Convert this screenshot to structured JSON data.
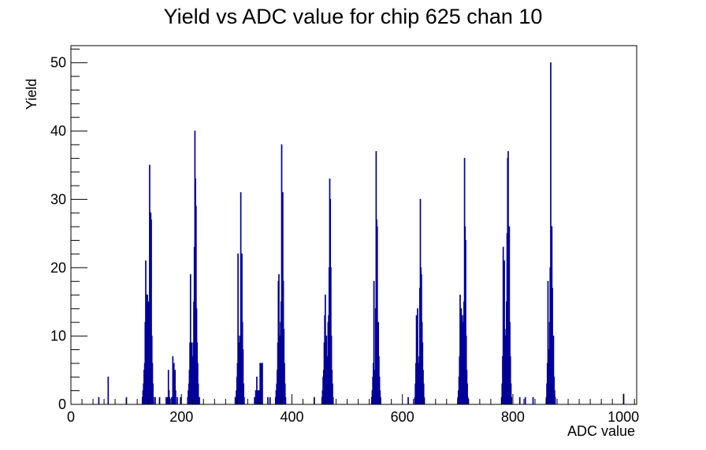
{
  "chart_data": {
    "type": "histogram",
    "title": "Yield vs ADC value for chip 625 chan 10",
    "xlabel": "ADC value",
    "ylabel": "Yield",
    "xlim": [
      0,
      1024
    ],
    "ylim": [
      0,
      52.5
    ],
    "x_ticks": [
      0,
      200,
      400,
      600,
      800,
      1000
    ],
    "y_ticks": [
      0,
      10,
      20,
      30,
      40,
      50
    ],
    "bin_width": 1,
    "color": "#000099",
    "grid": false,
    "legend": "none",
    "bins": [
      {
        "x": 50,
        "y": 1
      },
      {
        "x": 67,
        "y": 4
      },
      {
        "x": 100,
        "y": 1
      },
      {
        "x": 129,
        "y": 1
      },
      {
        "x": 130,
        "y": 2
      },
      {
        "x": 131,
        "y": 3
      },
      {
        "x": 132,
        "y": 5
      },
      {
        "x": 133,
        "y": 6
      },
      {
        "x": 134,
        "y": 12
      },
      {
        "x": 135,
        "y": 21
      },
      {
        "x": 136,
        "y": 16
      },
      {
        "x": 137,
        "y": 5
      },
      {
        "x": 138,
        "y": 16
      },
      {
        "x": 139,
        "y": 4
      },
      {
        "x": 140,
        "y": 15
      },
      {
        "x": 141,
        "y": 6
      },
      {
        "x": 142,
        "y": 35
      },
      {
        "x": 143,
        "y": 8
      },
      {
        "x": 144,
        "y": 28
      },
      {
        "x": 145,
        "y": 27
      },
      {
        "x": 146,
        "y": 10
      },
      {
        "x": 147,
        "y": 6
      },
      {
        "x": 148,
        "y": 3
      },
      {
        "x": 149,
        "y": 1
      },
      {
        "x": 152,
        "y": 1
      },
      {
        "x": 160,
        "y": 1
      },
      {
        "x": 172,
        "y": 1
      },
      {
        "x": 174,
        "y": 1
      },
      {
        "x": 176,
        "y": 5
      },
      {
        "x": 177,
        "y": 2
      },
      {
        "x": 178,
        "y": 1
      },
      {
        "x": 182,
        "y": 1
      },
      {
        "x": 184,
        "y": 7
      },
      {
        "x": 185,
        "y": 2
      },
      {
        "x": 186,
        "y": 6
      },
      {
        "x": 187,
        "y": 1
      },
      {
        "x": 188,
        "y": 5
      },
      {
        "x": 189,
        "y": 2
      },
      {
        "x": 192,
        "y": 1
      },
      {
        "x": 198,
        "y": 1
      },
      {
        "x": 211,
        "y": 1
      },
      {
        "x": 212,
        "y": 2
      },
      {
        "x": 213,
        "y": 3
      },
      {
        "x": 214,
        "y": 5
      },
      {
        "x": 215,
        "y": 9
      },
      {
        "x": 216,
        "y": 19
      },
      {
        "x": 217,
        "y": 6
      },
      {
        "x": 218,
        "y": 9
      },
      {
        "x": 219,
        "y": 6
      },
      {
        "x": 220,
        "y": 7
      },
      {
        "x": 221,
        "y": 9
      },
      {
        "x": 222,
        "y": 15
      },
      {
        "x": 223,
        "y": 23
      },
      {
        "x": 224,
        "y": 40
      },
      {
        "x": 225,
        "y": 33
      },
      {
        "x": 226,
        "y": 29
      },
      {
        "x": 227,
        "y": 14
      },
      {
        "x": 228,
        "y": 9
      },
      {
        "x": 229,
        "y": 6
      },
      {
        "x": 230,
        "y": 3
      },
      {
        "x": 231,
        "y": 1
      },
      {
        "x": 232,
        "y": 1
      },
      {
        "x": 297,
        "y": 1
      },
      {
        "x": 298,
        "y": 1
      },
      {
        "x": 299,
        "y": 2
      },
      {
        "x": 300,
        "y": 4
      },
      {
        "x": 301,
        "y": 6
      },
      {
        "x": 302,
        "y": 22
      },
      {
        "x": 303,
        "y": 10
      },
      {
        "x": 304,
        "y": 9
      },
      {
        "x": 305,
        "y": 4
      },
      {
        "x": 306,
        "y": 10
      },
      {
        "x": 307,
        "y": 31
      },
      {
        "x": 308,
        "y": 15
      },
      {
        "x": 309,
        "y": 22
      },
      {
        "x": 310,
        "y": 12
      },
      {
        "x": 311,
        "y": 8
      },
      {
        "x": 312,
        "y": 3
      },
      {
        "x": 313,
        "y": 1
      },
      {
        "x": 332,
        "y": 1
      },
      {
        "x": 334,
        "y": 2
      },
      {
        "x": 336,
        "y": 4
      },
      {
        "x": 338,
        "y": 2
      },
      {
        "x": 340,
        "y": 2
      },
      {
        "x": 342,
        "y": 6
      },
      {
        "x": 344,
        "y": 6
      },
      {
        "x": 346,
        "y": 6
      },
      {
        "x": 356,
        "y": 1
      },
      {
        "x": 360,
        "y": 1
      },
      {
        "x": 370,
        "y": 1
      },
      {
        "x": 371,
        "y": 2
      },
      {
        "x": 372,
        "y": 3
      },
      {
        "x": 373,
        "y": 5
      },
      {
        "x": 374,
        "y": 9
      },
      {
        "x": 375,
        "y": 18
      },
      {
        "x": 376,
        "y": 19
      },
      {
        "x": 377,
        "y": 10
      },
      {
        "x": 378,
        "y": 7
      },
      {
        "x": 379,
        "y": 12
      },
      {
        "x": 380,
        "y": 15
      },
      {
        "x": 381,
        "y": 38
      },
      {
        "x": 382,
        "y": 30
      },
      {
        "x": 383,
        "y": 31
      },
      {
        "x": 384,
        "y": 18
      },
      {
        "x": 385,
        "y": 11
      },
      {
        "x": 386,
        "y": 6
      },
      {
        "x": 387,
        "y": 3
      },
      {
        "x": 388,
        "y": 1
      },
      {
        "x": 440,
        "y": 1
      },
      {
        "x": 454,
        "y": 1
      },
      {
        "x": 455,
        "y": 2
      },
      {
        "x": 456,
        "y": 4
      },
      {
        "x": 457,
        "y": 5
      },
      {
        "x": 458,
        "y": 9
      },
      {
        "x": 459,
        "y": 13
      },
      {
        "x": 460,
        "y": 16
      },
      {
        "x": 461,
        "y": 7
      },
      {
        "x": 462,
        "y": 10
      },
      {
        "x": 463,
        "y": 7
      },
      {
        "x": 464,
        "y": 5
      },
      {
        "x": 465,
        "y": 12
      },
      {
        "x": 466,
        "y": 13
      },
      {
        "x": 467,
        "y": 20
      },
      {
        "x": 468,
        "y": 33
      },
      {
        "x": 469,
        "y": 30
      },
      {
        "x": 470,
        "y": 20
      },
      {
        "x": 471,
        "y": 10
      },
      {
        "x": 472,
        "y": 5
      },
      {
        "x": 473,
        "y": 3
      },
      {
        "x": 474,
        "y": 1
      },
      {
        "x": 544,
        "y": 1
      },
      {
        "x": 545,
        "y": 2
      },
      {
        "x": 546,
        "y": 4
      },
      {
        "x": 547,
        "y": 6
      },
      {
        "x": 548,
        "y": 18
      },
      {
        "x": 549,
        "y": 5
      },
      {
        "x": 550,
        "y": 5
      },
      {
        "x": 551,
        "y": 14
      },
      {
        "x": 552,
        "y": 37
      },
      {
        "x": 553,
        "y": 27
      },
      {
        "x": 554,
        "y": 26
      },
      {
        "x": 555,
        "y": 11
      },
      {
        "x": 556,
        "y": 12
      },
      {
        "x": 557,
        "y": 7
      },
      {
        "x": 558,
        "y": 4
      },
      {
        "x": 559,
        "y": 2
      },
      {
        "x": 560,
        "y": 1
      },
      {
        "x": 610,
        "y": 1
      },
      {
        "x": 622,
        "y": 1
      },
      {
        "x": 623,
        "y": 3
      },
      {
        "x": 624,
        "y": 6
      },
      {
        "x": 625,
        "y": 13
      },
      {
        "x": 626,
        "y": 10
      },
      {
        "x": 627,
        "y": 14
      },
      {
        "x": 628,
        "y": 6
      },
      {
        "x": 629,
        "y": 3
      },
      {
        "x": 630,
        "y": 7
      },
      {
        "x": 631,
        "y": 17
      },
      {
        "x": 632,
        "y": 30
      },
      {
        "x": 633,
        "y": 20
      },
      {
        "x": 634,
        "y": 19
      },
      {
        "x": 635,
        "y": 12
      },
      {
        "x": 636,
        "y": 9
      },
      {
        "x": 637,
        "y": 5
      },
      {
        "x": 638,
        "y": 3
      },
      {
        "x": 639,
        "y": 1
      },
      {
        "x": 700,
        "y": 1
      },
      {
        "x": 701,
        "y": 2
      },
      {
        "x": 702,
        "y": 4
      },
      {
        "x": 703,
        "y": 7
      },
      {
        "x": 704,
        "y": 16
      },
      {
        "x": 705,
        "y": 11
      },
      {
        "x": 706,
        "y": 14
      },
      {
        "x": 707,
        "y": 9
      },
      {
        "x": 708,
        "y": 13
      },
      {
        "x": 709,
        "y": 6
      },
      {
        "x": 710,
        "y": 12
      },
      {
        "x": 711,
        "y": 15
      },
      {
        "x": 712,
        "y": 36
      },
      {
        "x": 713,
        "y": 26
      },
      {
        "x": 714,
        "y": 24
      },
      {
        "x": 715,
        "y": 10
      },
      {
        "x": 716,
        "y": 5
      },
      {
        "x": 717,
        "y": 3
      },
      {
        "x": 718,
        "y": 1
      },
      {
        "x": 779,
        "y": 1
      },
      {
        "x": 780,
        "y": 3
      },
      {
        "x": 781,
        "y": 7
      },
      {
        "x": 782,
        "y": 23
      },
      {
        "x": 783,
        "y": 8
      },
      {
        "x": 784,
        "y": 21
      },
      {
        "x": 785,
        "y": 11
      },
      {
        "x": 786,
        "y": 8
      },
      {
        "x": 787,
        "y": 10
      },
      {
        "x": 788,
        "y": 15
      },
      {
        "x": 789,
        "y": 25
      },
      {
        "x": 790,
        "y": 36
      },
      {
        "x": 791,
        "y": 37
      },
      {
        "x": 792,
        "y": 20
      },
      {
        "x": 793,
        "y": 26
      },
      {
        "x": 794,
        "y": 12
      },
      {
        "x": 795,
        "y": 7
      },
      {
        "x": 796,
        "y": 3
      },
      {
        "x": 797,
        "y": 1
      },
      {
        "x": 812,
        "y": 1
      },
      {
        "x": 822,
        "y": 1
      },
      {
        "x": 836,
        "y": 1
      },
      {
        "x": 860,
        "y": 1
      },
      {
        "x": 861,
        "y": 3
      },
      {
        "x": 862,
        "y": 6
      },
      {
        "x": 863,
        "y": 18
      },
      {
        "x": 864,
        "y": 8
      },
      {
        "x": 865,
        "y": 7
      },
      {
        "x": 866,
        "y": 12
      },
      {
        "x": 867,
        "y": 20
      },
      {
        "x": 868,
        "y": 50
      },
      {
        "x": 869,
        "y": 26
      },
      {
        "x": 870,
        "y": 26
      },
      {
        "x": 871,
        "y": 17
      },
      {
        "x": 872,
        "y": 8
      },
      {
        "x": 873,
        "y": 10
      },
      {
        "x": 874,
        "y": 4
      },
      {
        "x": 875,
        "y": 2
      },
      {
        "x": 876,
        "y": 1
      },
      {
        "x": 1000,
        "y": 1.5
      }
    ]
  }
}
